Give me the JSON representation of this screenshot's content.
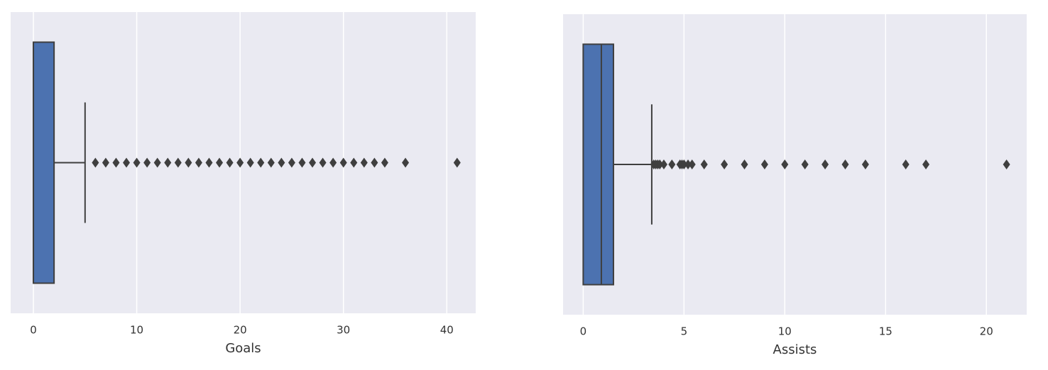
{
  "chart_data": [
    {
      "type": "box",
      "xlabel": "Goals",
      "color": "#4c72b0",
      "xlim": [
        -2.2,
        42.8
      ],
      "xticks": [
        0,
        10,
        20,
        30,
        40
      ],
      "grid": true,
      "min": 0,
      "q1": 0,
      "median": 0,
      "q3": 2,
      "max": 5,
      "outliers": [
        6,
        7,
        8,
        9,
        10,
        11,
        12,
        13,
        14,
        15,
        16,
        17,
        18,
        19,
        20,
        21,
        22,
        23,
        24,
        25,
        26,
        27,
        28,
        29,
        30,
        31,
        32,
        33,
        34,
        36,
        41
      ]
    },
    {
      "type": "box",
      "xlabel": "Assists",
      "color": "#4c72b0",
      "xlim": [
        -1,
        22
      ],
      "xticks": [
        0,
        5,
        10,
        15,
        20
      ],
      "grid": true,
      "min": 0,
      "q1": 0,
      "median": 0.9,
      "q3": 1.5,
      "max": 3.4,
      "outliers": [
        3.5,
        3.6,
        3.7,
        3.8,
        4.0,
        4.4,
        4.8,
        4.9,
        5.0,
        5.2,
        5.4,
        6,
        7,
        8,
        9,
        10,
        11,
        12,
        13,
        14,
        16,
        17,
        21
      ]
    }
  ]
}
